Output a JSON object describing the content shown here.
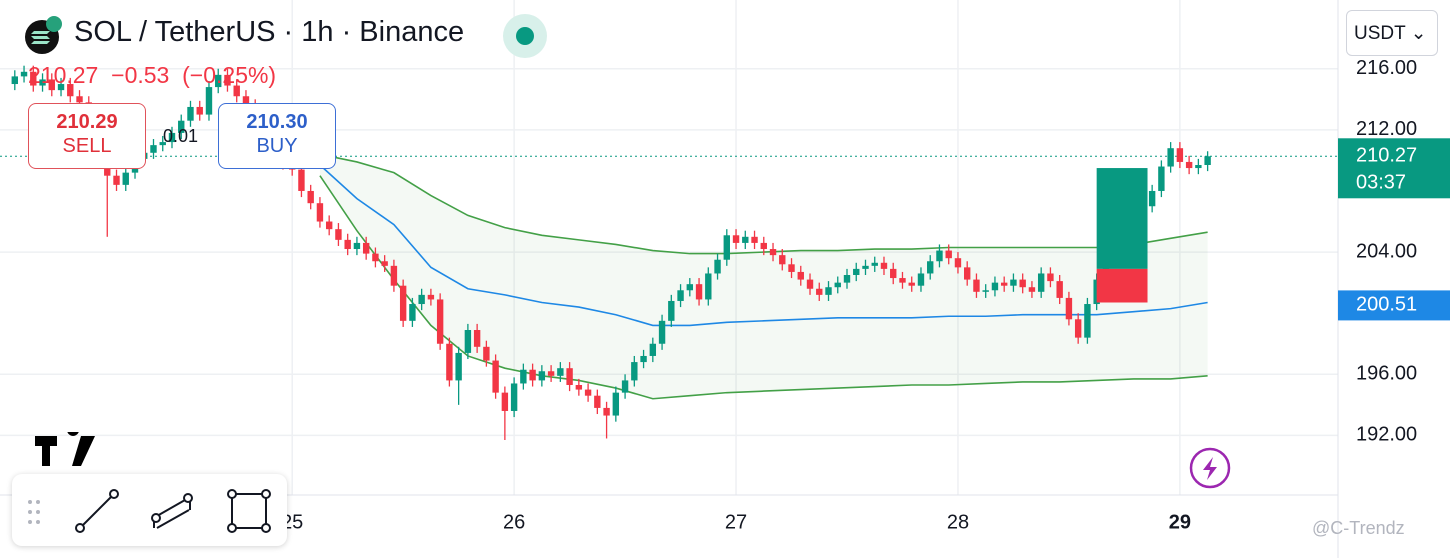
{
  "chart_data": {
    "type": "candlestick",
    "title": "SOL / TetherUS · 1h · Binance",
    "header": {
      "price": 210.27,
      "change": {
        "value": -0.53,
        "label": "−0.53"
      },
      "change_percent": {
        "value": -0.25,
        "label": "(−0.25%)"
      }
    },
    "sell": {
      "price": 210.29,
      "label": "SELL"
    },
    "buy": {
      "price": {
        "value": 210.3,
        "label": "210.30"
      },
      "label": "BUY"
    },
    "spread": 0.01,
    "up_color": "#089981",
    "down_color": "#f23645",
    "x": [
      -30,
      -29,
      -28,
      -27,
      -26,
      -25,
      -24,
      -23,
      -22,
      -21,
      -20,
      -19,
      -18,
      -17,
      -16,
      -15,
      -14,
      -13,
      -12,
      -11,
      -10,
      -9,
      -8,
      -7,
      -6,
      -5,
      -4,
      -3,
      -2,
      -1,
      0,
      1,
      2,
      3,
      4,
      5,
      6,
      7,
      8,
      9,
      10,
      11,
      12,
      13,
      14,
      15,
      16,
      17,
      18,
      19,
      20,
      21,
      22,
      23,
      24,
      25,
      26,
      27,
      28,
      29,
      30,
      31,
      32,
      33,
      34,
      35,
      36,
      37,
      38,
      39,
      40,
      41,
      42,
      43,
      44,
      45,
      46,
      47,
      48,
      49,
      50,
      51,
      52,
      53,
      54,
      55,
      56,
      57,
      58,
      59,
      60,
      61,
      62,
      63,
      64,
      65,
      66,
      67,
      68,
      69,
      70,
      71,
      72,
      73,
      74,
      75,
      76,
      77,
      78,
      79,
      80,
      81,
      82,
      83,
      84,
      85,
      86,
      87,
      88,
      89,
      90,
      91,
      92,
      93,
      94,
      95,
      96,
      97,
      98,
      99
    ],
    "open": [
      215.0,
      215.5,
      215.8,
      214.9,
      215.3,
      214.6,
      215.0,
      214.2,
      213.8,
      212.5,
      210.5,
      209.0,
      208.4,
      209.2,
      210.1,
      210.5,
      211.0,
      211.2,
      211.8,
      212.6,
      213.5,
      213.0,
      214.8,
      215.6,
      214.9,
      214.2,
      213.6,
      212.4,
      211.0,
      210.2,
      209.8,
      209.4,
      208.0,
      207.2,
      206.0,
      205.5,
      204.8,
      204.2,
      204.6,
      203.9,
      203.4,
      203.1,
      201.8,
      199.5,
      200.6,
      201.2,
      200.9,
      198.0,
      195.6,
      197.4,
      198.9,
      197.8,
      196.9,
      194.8,
      193.6,
      195.4,
      196.3,
      195.6,
      196.2,
      195.9,
      196.4,
      195.3,
      195.0,
      194.6,
      193.8,
      193.3,
      194.8,
      195.6,
      196.8,
      197.2,
      198.0,
      199.5,
      200.8,
      201.5,
      201.9,
      200.9,
      202.6,
      203.5,
      205.1,
      204.6,
      205.0,
      204.6,
      204.2,
      203.8,
      203.2,
      202.7,
      202.2,
      201.6,
      201.2,
      201.7,
      202.0,
      202.5,
      202.9,
      203.1,
      203.3,
      202.9,
      202.3,
      202.0,
      201.8,
      202.6,
      203.4,
      204.1,
      203.6,
      203.0,
      202.2,
      201.4,
      201.5,
      202.0,
      201.8,
      202.2,
      201.7,
      201.4,
      202.6,
      202.1,
      201.0,
      199.6,
      198.4,
      200.6,
      202.2,
      203.4,
      204.6,
      205.6,
      206.4,
      207.0,
      208.0,
      209.6,
      210.8,
      209.9,
      209.5,
      209.7
    ],
    "high": [
      215.9,
      216.2,
      216.2,
      215.7,
      215.7,
      215.4,
      215.4,
      214.6,
      214.2,
      212.9,
      210.9,
      209.4,
      209.6,
      210.5,
      210.9,
      211.4,
      211.6,
      212.2,
      213.0,
      213.9,
      213.9,
      215.2,
      216.0,
      216.0,
      215.3,
      214.6,
      214.0,
      212.8,
      211.4,
      210.6,
      210.2,
      209.8,
      208.4,
      207.6,
      206.4,
      205.9,
      205.2,
      205.0,
      205.0,
      204.3,
      203.8,
      203.5,
      202.2,
      201.0,
      201.6,
      201.6,
      201.3,
      198.4,
      197.8,
      199.3,
      199.3,
      198.2,
      197.3,
      195.2,
      195.8,
      196.7,
      196.7,
      196.6,
      196.6,
      196.8,
      196.8,
      195.7,
      195.4,
      195.0,
      194.2,
      195.2,
      196.0,
      197.2,
      197.6,
      198.4,
      199.9,
      201.2,
      201.9,
      202.3,
      202.3,
      203.0,
      203.9,
      205.5,
      205.5,
      205.4,
      205.4,
      205.0,
      204.6,
      204.2,
      203.6,
      203.1,
      202.6,
      202.0,
      202.1,
      202.4,
      202.9,
      203.3,
      203.5,
      203.7,
      203.7,
      203.3,
      202.7,
      202.4,
      203.0,
      203.8,
      204.5,
      204.5,
      204.0,
      203.4,
      202.6,
      201.9,
      202.4,
      202.4,
      202.6,
      202.6,
      202.1,
      203.0,
      203.0,
      202.5,
      201.4,
      200.0,
      201.0,
      202.6,
      203.8,
      205.0,
      206.0,
      206.8,
      207.4,
      208.4,
      210.0,
      211.2,
      211.2,
      210.3,
      210.1,
      210.6
    ],
    "low": [
      214.6,
      215.1,
      214.5,
      214.5,
      214.2,
      214.2,
      213.8,
      213.4,
      212.1,
      210.1,
      205.0,
      208.0,
      208.0,
      208.8,
      209.7,
      210.1,
      210.6,
      210.8,
      211.4,
      212.2,
      212.6,
      212.6,
      214.4,
      214.5,
      213.8,
      213.2,
      212.0,
      210.6,
      209.8,
      209.4,
      209.0,
      207.6,
      206.8,
      205.6,
      205.1,
      204.4,
      203.8,
      203.8,
      203.5,
      203.0,
      202.7,
      201.4,
      199.1,
      199.1,
      200.2,
      200.5,
      197.6,
      195.2,
      194.0,
      197.0,
      197.4,
      196.5,
      194.4,
      191.7,
      193.2,
      195.0,
      195.2,
      195.2,
      195.5,
      195.5,
      194.9,
      194.6,
      194.2,
      193.4,
      191.8,
      192.9,
      194.4,
      195.2,
      196.4,
      196.8,
      197.6,
      199.1,
      200.4,
      201.1,
      200.5,
      200.5,
      202.2,
      203.1,
      204.2,
      204.2,
      204.2,
      203.8,
      203.4,
      202.8,
      202.3,
      201.8,
      201.2,
      200.8,
      200.8,
      201.3,
      201.6,
      202.1,
      202.5,
      202.7,
      202.5,
      201.9,
      201.6,
      201.4,
      201.4,
      202.2,
      203.0,
      203.2,
      202.6,
      201.8,
      201.0,
      201.0,
      201.1,
      201.4,
      201.4,
      201.3,
      201.0,
      201.0,
      201.7,
      200.6,
      199.2,
      198.0,
      198.0,
      200.2,
      201.8,
      203.0,
      204.2,
      205.2,
      206.0,
      206.6,
      207.6,
      209.2,
      209.5,
      209.1,
      209.1,
      209.3
    ],
    "close": [
      215.5,
      215.8,
      214.9,
      215.3,
      214.6,
      215.0,
      214.2,
      213.8,
      212.5,
      210.5,
      209.0,
      208.4,
      209.2,
      210.1,
      210.5,
      211.0,
      211.2,
      211.8,
      212.6,
      213.5,
      213.0,
      214.8,
      215.6,
      214.9,
      214.2,
      213.6,
      212.4,
      211.0,
      210.2,
      209.8,
      209.4,
      208.0,
      207.2,
      206.0,
      205.5,
      204.8,
      204.2,
      204.6,
      203.9,
      203.4,
      203.1,
      201.8,
      199.5,
      200.6,
      201.2,
      200.9,
      198.0,
      195.6,
      197.4,
      198.9,
      197.8,
      196.9,
      194.8,
      193.6,
      195.4,
      196.3,
      195.6,
      196.2,
      195.9,
      196.4,
      195.3,
      195.0,
      194.6,
      193.8,
      193.3,
      194.8,
      195.6,
      196.8,
      197.2,
      198.0,
      199.5,
      200.8,
      201.5,
      201.9,
      200.9,
      202.6,
      203.5,
      205.1,
      204.6,
      205.0,
      204.6,
      204.2,
      203.8,
      203.2,
      202.7,
      202.2,
      201.6,
      201.2,
      201.7,
      202.0,
      202.5,
      202.9,
      203.1,
      203.3,
      202.9,
      202.3,
      202.0,
      201.8,
      202.6,
      203.4,
      204.1,
      203.6,
      203.0,
      202.2,
      201.4,
      201.5,
      202.0,
      201.8,
      202.2,
      201.7,
      201.4,
      202.6,
      202.1,
      201.0,
      199.6,
      198.4,
      200.6,
      202.2,
      203.4,
      204.6,
      205.6,
      206.4,
      207.0,
      208.0,
      209.6,
      210.8,
      209.9,
      209.5,
      209.7,
      210.27
    ],
    "bands": {
      "x": [
        3,
        7,
        11,
        15,
        19,
        23,
        27,
        31,
        35,
        39,
        43,
        47,
        51,
        55,
        59,
        63,
        67,
        71,
        75,
        79,
        83,
        87,
        91,
        95,
        99
      ],
      "upper": [
        210.4,
        209.9,
        209.2,
        207.7,
        206.4,
        205.6,
        205.1,
        204.8,
        204.5,
        204.1,
        203.9,
        203.9,
        204.0,
        204.1,
        204.1,
        204.2,
        204.2,
        204.3,
        204.3,
        204.3,
        204.3,
        204.3,
        204.5,
        204.9,
        205.3
      ],
      "middle": [
        209.7,
        207.5,
        205.8,
        203.0,
        201.6,
        201.2,
        200.7,
        200.4,
        199.9,
        199.2,
        199.2,
        199.4,
        199.5,
        199.6,
        199.7,
        199.7,
        199.7,
        199.8,
        199.8,
        199.9,
        199.9,
        199.9,
        200.1,
        200.3,
        200.7
      ],
      "lower": [
        209.0,
        205.4,
        202.2,
        199.2,
        197.2,
        196.4,
        195.9,
        195.6,
        195.1,
        194.4,
        194.6,
        194.8,
        194.9,
        195.0,
        195.1,
        195.2,
        195.3,
        195.3,
        195.4,
        195.5,
        195.5,
        195.6,
        195.7,
        195.7,
        195.9
      ],
      "band_color": "#43a047",
      "middle_color": "#1e88e5",
      "fill": "rgba(67,160,71,0.06)"
    },
    "position_tool": {
      "x": [
        87,
        92.5
      ],
      "target": 209.5,
      "entry": 202.9,
      "stop": 200.7,
      "profit_color": "#089981",
      "loss_color": "#f23645"
    },
    "last_price": {
      "value": 210.27,
      "countdown": "03:37"
    },
    "middle_label": 200.51,
    "xlim": [
      -31.6,
      113.1
    ],
    "xticks": [
      {
        "value": 0,
        "label": "25"
      },
      {
        "value": 24,
        "label": "26"
      },
      {
        "value": 48,
        "label": "27"
      },
      {
        "value": 72,
        "label": "28"
      },
      {
        "value": 96,
        "label": "29"
      }
    ],
    "ylim": [
      188.1,
      220.5
    ],
    "yticks": [
      {
        "value": 192,
        "label": "192.00"
      },
      {
        "value": 196,
        "label": "196.00"
      },
      {
        "value": 204,
        "label": "204.00"
      },
      {
        "value": 212,
        "label": "212.00"
      },
      {
        "value": 216,
        "label": "216.00"
      }
    ],
    "grid": true
  },
  "ui": {
    "currency": "USDT",
    "watermark": "@C-Trendz"
  }
}
